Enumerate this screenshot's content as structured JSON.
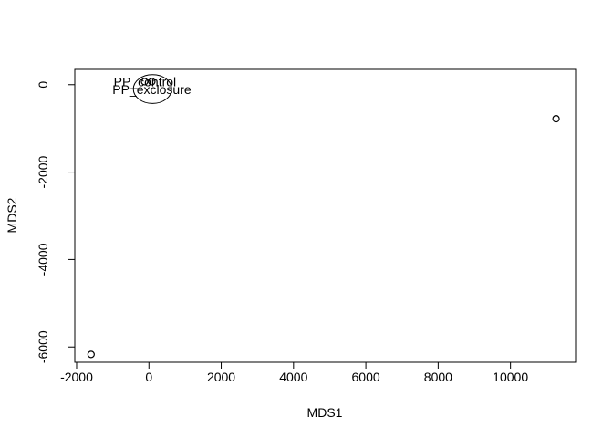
{
  "chart_data": {
    "type": "scatter",
    "title": "",
    "xlabel": "MDS1",
    "ylabel": "MDS2",
    "xlim": [
      -2050,
      11800
    ],
    "ylim": [
      -6350,
      350
    ],
    "xticks": [
      -2000,
      0,
      2000,
      4000,
      6000,
      8000,
      10000
    ],
    "xtick_labels": [
      "-2000",
      "0",
      "2000",
      "4000",
      "6000",
      "8000",
      "10000"
    ],
    "yticks": [
      -6000,
      -4000,
      -2000,
      0
    ],
    "ytick_labels": [
      "-6000",
      "-4000",
      "-2000",
      "0"
    ],
    "grid": false,
    "points": [
      {
        "x": -1600,
        "y": -6170
      },
      {
        "x": -120,
        "y": 70
      },
      {
        "x": 80,
        "y": 70
      },
      {
        "x": 11260,
        "y": -780
      }
    ],
    "annotations": [
      {
        "text": "PP_control",
        "x": -110,
        "y": 70
      },
      {
        "text": "PP_exclosure",
        "x": 80,
        "y": -110
      }
    ],
    "ellipses": [
      {
        "cx": 100,
        "cy": -100,
        "rx": 530,
        "ry": 330
      }
    ]
  }
}
